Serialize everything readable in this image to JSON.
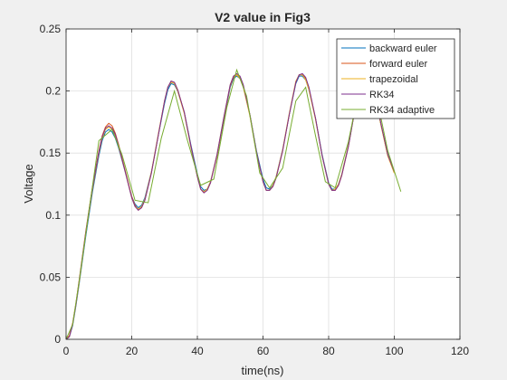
{
  "figure": {
    "background": "#f0f0f0",
    "axes_background": "#ffffff"
  },
  "chart_data": {
    "type": "line",
    "title": "V2 value in Fig3",
    "xlabel": "time(ns)",
    "ylabel": "Voltage",
    "xlim": [
      0,
      120
    ],
    "ylim": [
      0,
      0.25
    ],
    "xticks": [
      0,
      20,
      40,
      60,
      80,
      100,
      120
    ],
    "yticks": [
      0,
      0.05,
      0.1,
      0.15,
      0.2,
      0.25
    ],
    "xtick_labels": [
      "0",
      "20",
      "40",
      "60",
      "80",
      "100",
      "120"
    ],
    "ytick_labels": [
      "0",
      "0.05",
      "0.1",
      "0.15",
      "0.2",
      "0.25"
    ],
    "grid": true,
    "legend_position": "top-right",
    "series": [
      {
        "name": "backward euler",
        "color": "#0072bd",
        "x": [
          0,
          1,
          2,
          3,
          4,
          6,
          8,
          10,
          11,
          12,
          13,
          14,
          15,
          16,
          18,
          20,
          21,
          22,
          23,
          24,
          26,
          28,
          30,
          31,
          32,
          33,
          34,
          36,
          38,
          40,
          41,
          42,
          43,
          44,
          46,
          48,
          50,
          51,
          52,
          53,
          54,
          56,
          58,
          60,
          61,
          62,
          63,
          64,
          66,
          68,
          70,
          71,
          72,
          73,
          74,
          76,
          78,
          80,
          81,
          82,
          83,
          84,
          86,
          88,
          90,
          91,
          92,
          93,
          94,
          96,
          98,
          100
        ],
        "y": [
          0,
          0.002,
          0.011,
          0.027,
          0.045,
          0.083,
          0.118,
          0.148,
          0.16,
          0.167,
          0.169,
          0.167,
          0.162,
          0.154,
          0.135,
          0.115,
          0.109,
          0.106,
          0.108,
          0.114,
          0.135,
          0.163,
          0.19,
          0.201,
          0.206,
          0.205,
          0.2,
          0.183,
          0.157,
          0.133,
          0.123,
          0.12,
          0.121,
          0.127,
          0.148,
          0.176,
          0.203,
          0.21,
          0.212,
          0.21,
          0.203,
          0.181,
          0.152,
          0.129,
          0.122,
          0.121,
          0.124,
          0.131,
          0.153,
          0.181,
          0.206,
          0.212,
          0.212,
          0.209,
          0.201,
          0.178,
          0.149,
          0.126,
          0.121,
          0.121,
          0.125,
          0.133,
          0.156,
          0.185,
          0.209,
          0.214,
          0.212,
          0.207,
          0.197,
          0.172,
          0.149,
          0.135
        ]
      },
      {
        "name": "forward euler",
        "color": "#d95319",
        "x": [
          0,
          1,
          2,
          3,
          4,
          6,
          8,
          10,
          11,
          12,
          13,
          14,
          15,
          16,
          18,
          20,
          21,
          22,
          23,
          24,
          26,
          28,
          30,
          31,
          32,
          33,
          34,
          36,
          38,
          40,
          41,
          42,
          43,
          44,
          46,
          48,
          50,
          51,
          52,
          53,
          54,
          56,
          58,
          60,
          61,
          62,
          63,
          64,
          66,
          68,
          70,
          71,
          72,
          73,
          74,
          76,
          78,
          80,
          81,
          82,
          83,
          84,
          86,
          88,
          90,
          91,
          92,
          93,
          94,
          96,
          98,
          100
        ],
        "y": [
          0,
          0.003,
          0.013,
          0.029,
          0.048,
          0.087,
          0.122,
          0.152,
          0.164,
          0.171,
          0.174,
          0.172,
          0.166,
          0.157,
          0.136,
          0.115,
          0.108,
          0.104,
          0.106,
          0.112,
          0.134,
          0.163,
          0.192,
          0.203,
          0.208,
          0.207,
          0.201,
          0.183,
          0.156,
          0.131,
          0.121,
          0.118,
          0.12,
          0.126,
          0.148,
          0.177,
          0.204,
          0.211,
          0.213,
          0.211,
          0.204,
          0.181,
          0.151,
          0.127,
          0.12,
          0.12,
          0.123,
          0.13,
          0.152,
          0.181,
          0.207,
          0.213,
          0.213,
          0.21,
          0.202,
          0.178,
          0.148,
          0.125,
          0.12,
          0.12,
          0.124,
          0.132,
          0.155,
          0.185,
          0.21,
          0.215,
          0.213,
          0.208,
          0.198,
          0.172,
          0.148,
          0.134
        ]
      },
      {
        "name": "trapezoidal",
        "color": "#edb120",
        "x": [
          0,
          1,
          2,
          3,
          4,
          6,
          8,
          10,
          11,
          12,
          13,
          14,
          15,
          16,
          18,
          20,
          21,
          22,
          23,
          24,
          26,
          28,
          30,
          31,
          32,
          33,
          34,
          36,
          38,
          40,
          41,
          42,
          43,
          44,
          46,
          48,
          50,
          51,
          52,
          53,
          54,
          56,
          58,
          60,
          61,
          62,
          63,
          64,
          66,
          68,
          70,
          71,
          72,
          73,
          74,
          76,
          78,
          80,
          81,
          82,
          83,
          84,
          86,
          88,
          90,
          91,
          92,
          93,
          94,
          96,
          98,
          100
        ],
        "y": [
          0,
          0.002,
          0.012,
          0.028,
          0.046,
          0.085,
          0.12,
          0.15,
          0.162,
          0.169,
          0.171,
          0.169,
          0.164,
          0.155,
          0.135,
          0.114,
          0.107,
          0.105,
          0.107,
          0.113,
          0.135,
          0.164,
          0.192,
          0.203,
          0.207,
          0.206,
          0.2,
          0.182,
          0.155,
          0.131,
          0.121,
          0.119,
          0.121,
          0.127,
          0.149,
          0.178,
          0.205,
          0.212,
          0.213,
          0.21,
          0.203,
          0.18,
          0.15,
          0.127,
          0.12,
          0.12,
          0.124,
          0.131,
          0.153,
          0.182,
          0.208,
          0.213,
          0.213,
          0.209,
          0.201,
          0.177,
          0.148,
          0.125,
          0.12,
          0.121,
          0.125,
          0.133,
          0.156,
          0.186,
          0.21,
          0.215,
          0.213,
          0.208,
          0.198,
          0.172,
          0.148,
          0.134
        ]
      },
      {
        "name": "RK34",
        "color": "#7e2f8e",
        "x": [
          0,
          1,
          2,
          3,
          4,
          6,
          8,
          10,
          11,
          12,
          13,
          14,
          15,
          16,
          18,
          20,
          21,
          22,
          23,
          24,
          26,
          28,
          30,
          31,
          32,
          33,
          34,
          36,
          38,
          40,
          41,
          42,
          43,
          44,
          46,
          48,
          50,
          51,
          52,
          53,
          54,
          56,
          58,
          60,
          61,
          62,
          63,
          64,
          66,
          68,
          70,
          71,
          72,
          73,
          74,
          76,
          78,
          80,
          81,
          82,
          83,
          84,
          86,
          88,
          90,
          91,
          92,
          93,
          94,
          96,
          98,
          100
        ],
        "y": [
          0,
          0.002,
          0.012,
          0.028,
          0.047,
          0.086,
          0.121,
          0.151,
          0.163,
          0.17,
          0.172,
          0.17,
          0.165,
          0.156,
          0.135,
          0.114,
          0.107,
          0.104,
          0.106,
          0.112,
          0.134,
          0.163,
          0.192,
          0.203,
          0.208,
          0.207,
          0.201,
          0.183,
          0.156,
          0.131,
          0.121,
          0.118,
          0.12,
          0.126,
          0.149,
          0.178,
          0.205,
          0.212,
          0.214,
          0.212,
          0.205,
          0.181,
          0.151,
          0.127,
          0.12,
          0.12,
          0.123,
          0.13,
          0.152,
          0.181,
          0.207,
          0.213,
          0.214,
          0.211,
          0.203,
          0.178,
          0.148,
          0.125,
          0.12,
          0.12,
          0.124,
          0.132,
          0.155,
          0.185,
          0.21,
          0.215,
          0.214,
          0.209,
          0.199,
          0.173,
          0.149,
          0.135
        ]
      },
      {
        "name": "RK34 adaptive",
        "color": "#77ac30",
        "x": [
          0,
          2,
          4,
          7,
          10,
          14,
          17,
          21,
          25,
          29,
          33,
          37,
          41,
          45,
          49,
          52,
          55,
          59,
          62,
          66,
          70,
          73,
          76,
          79,
          82,
          86,
          90,
          94,
          98,
          102
        ],
        "y": [
          0,
          0.012,
          0.047,
          0.104,
          0.16,
          0.169,
          0.149,
          0.112,
          0.11,
          0.162,
          0.2,
          0.16,
          0.124,
          0.129,
          0.187,
          0.217,
          0.196,
          0.134,
          0.122,
          0.138,
          0.192,
          0.203,
          0.164,
          0.127,
          0.122,
          0.159,
          0.211,
          0.203,
          0.152,
          0.119
        ]
      }
    ]
  }
}
